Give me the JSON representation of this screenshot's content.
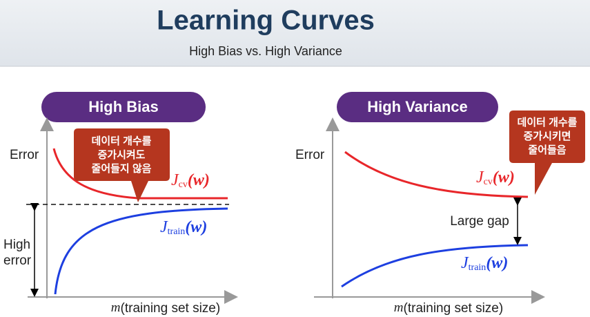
{
  "header": {
    "title": "Learning Curves",
    "subtitle": "High Bias vs. High Variance"
  },
  "panels": [
    {
      "title": "High Bias",
      "y_label": "Error",
      "x_label_var": "m",
      "x_label": "(training set size)",
      "callout": [
        "데이터 개수를",
        "증가시켜도",
        "줄어들지 않음"
      ],
      "cv_label": {
        "symbol": "J",
        "subscript": "cv",
        "arg": "(w)"
      },
      "train_label": {
        "symbol": "J",
        "subscript": "train",
        "arg": "(w)"
      },
      "gap_label": [
        "High",
        "error"
      ]
    },
    {
      "title": "High Variance",
      "y_label": "Error",
      "x_label_var": "m",
      "x_label": "(training set size)",
      "callout": [
        "데이터 개수를",
        "증가시키면",
        "줄어들음"
      ],
      "cv_label": {
        "symbol": "J",
        "subscript": "cv",
        "arg": "(w)"
      },
      "train_label": {
        "symbol": "J",
        "subscript": "train",
        "arg": "(w)"
      },
      "gap_label": [
        "Large gap"
      ]
    }
  ]
}
